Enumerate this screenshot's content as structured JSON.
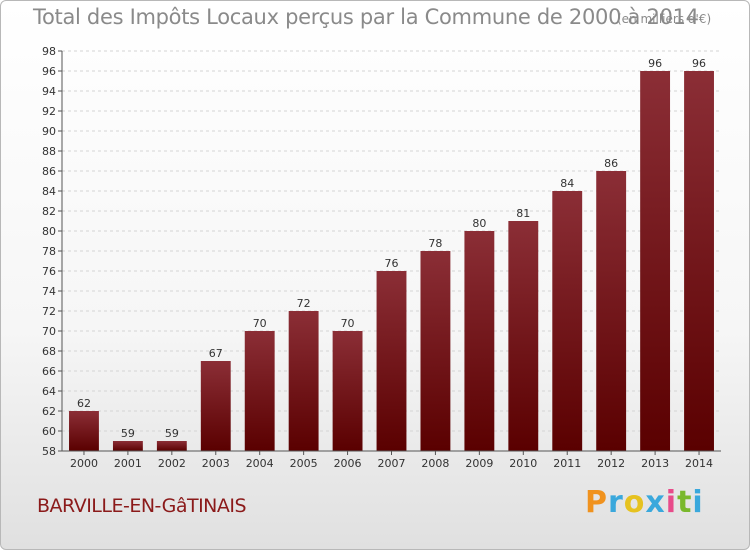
{
  "chart_data": {
    "type": "bar",
    "title": "Total des Impôts Locaux perçus par la Commune de 2000 à 2014",
    "unit_note": "(en milliers d'€)",
    "categories": [
      "2000",
      "2001",
      "2002",
      "2003",
      "2004",
      "2005",
      "2006",
      "2007",
      "2008",
      "2009",
      "2010",
      "2011",
      "2012",
      "2013",
      "2014"
    ],
    "values": [
      62,
      59,
      59,
      67,
      70,
      72,
      70,
      76,
      78,
      80,
      81,
      84,
      86,
      96,
      96
    ],
    "ylim": [
      58,
      98
    ],
    "yticks": [
      58,
      60,
      62,
      64,
      66,
      68,
      70,
      72,
      74,
      76,
      78,
      80,
      82,
      84,
      86,
      88,
      90,
      92,
      94,
      96,
      98
    ],
    "grid": true,
    "bar_color_top": "#8b2e36",
    "bar_color_bottom": "#5a0000"
  },
  "commune": "BARVILLE-EN-GâTINAIS",
  "logo": {
    "p": "P",
    "r": "r",
    "o": "o",
    "x": "x",
    "i1": "i",
    "t": "t",
    "i2": "i"
  }
}
